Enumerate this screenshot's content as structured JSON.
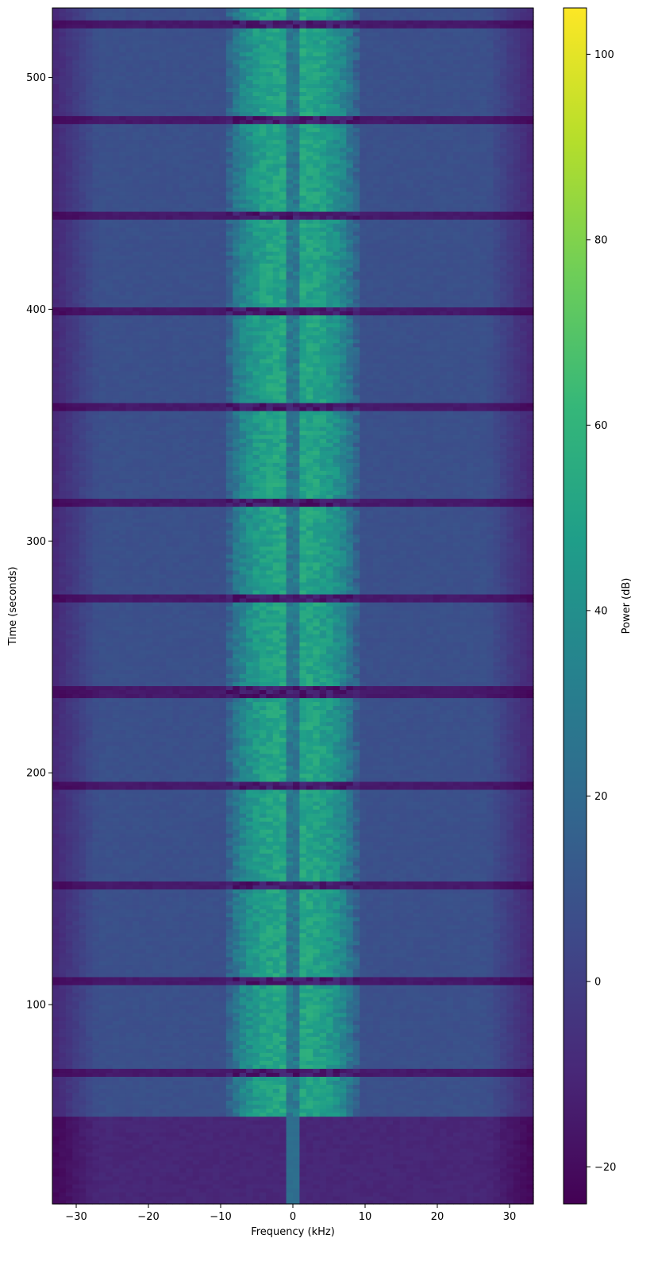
{
  "chart_data": {
    "type": "heatmap",
    "title": "",
    "xlabel": "Frequency (kHz)",
    "ylabel": "Time (seconds)",
    "colorbar_label": "Power (dB)",
    "colormap": "viridis",
    "xlim": [
      -33.3,
      33.3
    ],
    "ylim": [
      14,
      530
    ],
    "clim": [
      -24,
      105
    ],
    "x_ticks": [
      -30,
      -20,
      -10,
      0,
      10,
      20,
      30
    ],
    "x_tick_labels": [
      "−30",
      "−20",
      "−10",
      "0",
      "10",
      "20",
      "30"
    ],
    "y_ticks": [
      100,
      200,
      300,
      400,
      500
    ],
    "y_tick_labels": [
      "100",
      "200",
      "300",
      "400",
      "500"
    ],
    "colorbar_ticks": [
      -20,
      0,
      20,
      40,
      60,
      80,
      100
    ],
    "colorbar_tick_labels": [
      "−20",
      "0",
      "20",
      "40",
      "60",
      "80",
      "100"
    ],
    "colors": {
      "viridis_stops": [
        "#440154",
        "#482878",
        "#3e4989",
        "#31688e",
        "#26828e",
        "#1f9e89",
        "#35b779",
        "#6ece58",
        "#b5de2b",
        "#fde725"
      ]
    },
    "structure": {
      "noise_only_start_time": 14,
      "signal_start_time": 52,
      "signal_band_khz": [
        -9.5,
        9.5
      ],
      "signal_core_power_db": 52,
      "background_power_db": 8,
      "center_line_power_db": 28,
      "edge_power_db": -20,
      "dip_power_db": -15,
      "dip_times": [
        70,
        111,
        152,
        194,
        235,
        276,
        317,
        358,
        400,
        441,
        482,
        523
      ],
      "dip_duration_s": 3.5
    }
  }
}
